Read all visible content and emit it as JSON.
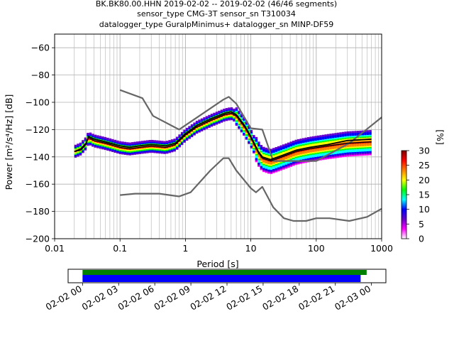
{
  "title_lines": [
    "BK.BK80.00.HHN   2019-02-02 -- 2019-02-02  (46/46 segments)",
    "sensor_type CMG-3T sensor_sn T310034",
    "datalogger_type GuralpMinimus+ datalogger_sn MINP-DF59"
  ],
  "chart_data": {
    "type": "heatmap",
    "xlabel": "Period [s]",
    "ylabel": "Power [m²/s⁴/Hz] [dB]",
    "xscale": "log",
    "xlim": [
      0.01,
      1000
    ],
    "ylim": [
      -200,
      -50
    ],
    "xticks": [
      {
        "value": 0.01,
        "label": "0.01"
      },
      {
        "value": 0.1,
        "label": "0.1"
      },
      {
        "value": 1,
        "label": "1"
      },
      {
        "value": 10,
        "label": "10"
      },
      {
        "value": 100,
        "label": "100"
      },
      {
        "value": 1000,
        "label": "1000"
      }
    ],
    "yticks": [
      -200,
      -180,
      -160,
      -140,
      -120,
      -100,
      -80,
      -60
    ],
    "ytick_labels": [
      "−200",
      "−180",
      "−160",
      "−140",
      "−120",
      "−100",
      "−80",
      "−60"
    ],
    "grid": true,
    "colorbar": {
      "label": "[%]",
      "range": [
        0,
        30
      ],
      "ticks": [
        "0",
        "5",
        "10",
        "15",
        "20",
        "25",
        "30"
      ],
      "colormap": [
        "#ffffff",
        "#ff00ff",
        "#6600cc",
        "#0000ff",
        "#00ffff",
        "#00ff00",
        "#ffff00",
        "#ff8000",
        "#ff0000",
        "#800000"
      ]
    },
    "noise_model_high": [
      [
        0.1,
        -91
      ],
      [
        0.22,
        -97
      ],
      [
        0.32,
        -110
      ],
      [
        0.8,
        -120
      ],
      [
        3.8,
        -98
      ],
      [
        4.6,
        -96
      ],
      [
        6,
        -101
      ],
      [
        10,
        -119
      ],
      [
        15,
        -120
      ],
      [
        22,
        -143
      ],
      [
        100,
        -143
      ],
      [
        320,
        -130
      ],
      [
        1000,
        -111
      ]
    ],
    "noise_model_low": [
      [
        0.1,
        -168
      ],
      [
        0.17,
        -167
      ],
      [
        0.4,
        -167
      ],
      [
        0.8,
        -169
      ],
      [
        1.2,
        -166
      ],
      [
        2.4,
        -150
      ],
      [
        3.8,
        -141
      ],
      [
        4.6,
        -141
      ],
      [
        6,
        -150
      ],
      [
        10,
        -163
      ],
      [
        12,
        -166
      ],
      [
        15,
        -162
      ],
      [
        22,
        -177
      ],
      [
        32,
        -185
      ],
      [
        45,
        -187
      ],
      [
        70,
        -187
      ],
      [
        100,
        -185
      ],
      [
        160,
        -185
      ],
      [
        320,
        -187
      ],
      [
        600,
        -184
      ],
      [
        1000,
        -178
      ]
    ],
    "mean_psd": [
      [
        0.02,
        -136
      ],
      [
        0.025,
        -134
      ],
      [
        0.03,
        -130
      ],
      [
        0.033,
        -126
      ],
      [
        0.04,
        -128
      ],
      [
        0.06,
        -130
      ],
      [
        0.1,
        -133
      ],
      [
        0.14,
        -134
      ],
      [
        0.2,
        -133
      ],
      [
        0.3,
        -132
      ],
      [
        0.5,
        -133
      ],
      [
        0.7,
        -131
      ],
      [
        1,
        -124
      ],
      [
        1.5,
        -118
      ],
      [
        2.5,
        -113
      ],
      [
        4,
        -109
      ],
      [
        5,
        -108
      ],
      [
        6,
        -110
      ],
      [
        8,
        -118
      ],
      [
        10,
        -126
      ],
      [
        13,
        -137
      ],
      [
        15,
        -141
      ],
      [
        20,
        -143
      ],
      [
        30,
        -140
      ],
      [
        50,
        -136
      ],
      [
        80,
        -134
      ],
      [
        150,
        -132
      ],
      [
        300,
        -130
      ],
      [
        700,
        -129
      ]
    ],
    "mode_psd": [
      [
        0.02,
        -136
      ],
      [
        0.025,
        -135
      ],
      [
        0.03,
        -131
      ],
      [
        0.033,
        -125
      ],
      [
        0.04,
        -127
      ],
      [
        0.06,
        -129
      ],
      [
        0.1,
        -132
      ],
      [
        0.14,
        -133
      ],
      [
        0.2,
        -132
      ],
      [
        0.3,
        -131
      ],
      [
        0.5,
        -132
      ],
      [
        0.7,
        -130
      ],
      [
        1,
        -123
      ],
      [
        1.5,
        -117
      ],
      [
        2.5,
        -112
      ],
      [
        4,
        -108
      ],
      [
        5,
        -107
      ],
      [
        6,
        -109
      ],
      [
        8,
        -117
      ],
      [
        10,
        -125
      ],
      [
        13,
        -136
      ],
      [
        15,
        -140
      ],
      [
        20,
        -142
      ],
      [
        30,
        -139
      ],
      [
        50,
        -135
      ],
      [
        80,
        -133
      ],
      [
        150,
        -131
      ],
      [
        300,
        -128
      ],
      [
        700,
        -127
      ]
    ],
    "spread_db": 4
  },
  "timeline": {
    "tick_labels": [
      "02-02 00",
      "02-02 03",
      "02-02 06",
      "02-02 09",
      "02-02 12",
      "02-02 15",
      "02-02 18",
      "02-02 21",
      "02-03 00"
    ],
    "range_hours": [
      -1.2,
      25.2
    ],
    "green_bar_hours": [
      0,
      23.6
    ],
    "blue_bar_hours": [
      0,
      23.1
    ],
    "green_color": "#008000",
    "blue_color": "#0000ff"
  }
}
